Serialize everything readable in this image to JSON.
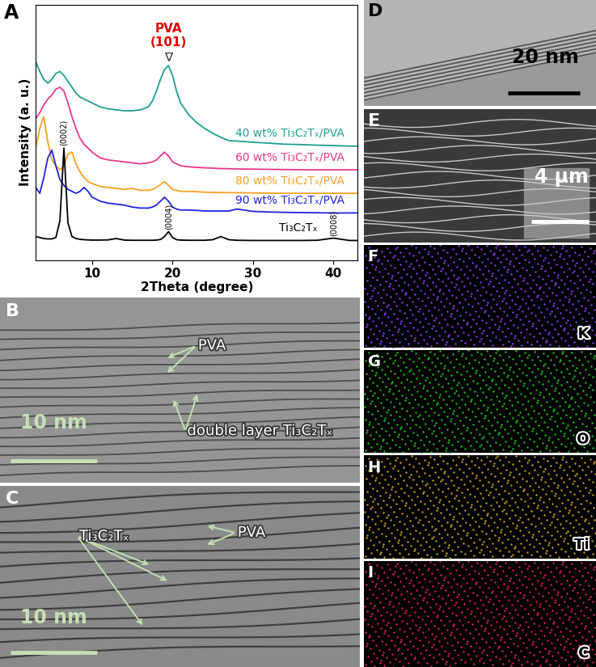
{
  "chart_data": {
    "type": "line",
    "title": "A",
    "x_label": "2Theta (degree)",
    "y_label": "Intensity (a. u.)",
    "x": [
      3,
      3.5,
      4,
      4.5,
      5,
      5.5,
      6,
      6.5,
      7,
      7.5,
      8,
      8.5,
      9,
      9.5,
      10,
      11,
      12,
      13,
      14,
      15,
      16,
      17,
      17.5,
      18,
      18.5,
      19,
      19.5,
      20,
      20.5,
      21,
      22,
      23,
      24,
      25,
      26,
      27,
      28,
      30,
      32,
      34,
      36,
      38,
      40,
      42,
      43
    ],
    "series": [
      {
        "name": "40 wt% Ti₃C₂Tₓ/PVA",
        "color": "#1f9e8f",
        "values": [
          101,
          96,
          92,
          90,
          92,
          95,
          96,
          94,
          91,
          88,
          85,
          83,
          82,
          81,
          80,
          78,
          77,
          76.5,
          76,
          76,
          76.5,
          78,
          81,
          86,
          92,
          97,
          99,
          94,
          86,
          80,
          74,
          70,
          67,
          64.5,
          62.5,
          60.8,
          60.6,
          60,
          59.5,
          59,
          58.8,
          58.5,
          58.3,
          58,
          58
        ]
      },
      {
        "name": "60 wt% Ti₃C₂Tₓ/PVA",
        "color": "#e8388a",
        "values": [
          72,
          75,
          79,
          82,
          84,
          87,
          88,
          86,
          80,
          73,
          67,
          62,
          59,
          57,
          55,
          52,
          51,
          50.5,
          50,
          49.5,
          49,
          49.5,
          50,
          51,
          53,
          55,
          53,
          50,
          49,
          48,
          47.5,
          47.2,
          47,
          46.8,
          46.6,
          46.5,
          46.4,
          46.3,
          46.2,
          46.1,
          46,
          46,
          46,
          46,
          46
        ]
      },
      {
        "name": "80 wt% Ti₃C₂Tₓ/PVA",
        "color": "#f5a023",
        "values": [
          57,
          67,
          73,
          60,
          51,
          48,
          46,
          48,
          54,
          55,
          49,
          45,
          42,
          40,
          39,
          37.5,
          37,
          36.5,
          36,
          36.5,
          35.5,
          35.5,
          36,
          37,
          38.5,
          40,
          38,
          36,
          35.5,
          35,
          35,
          34.8,
          34.6,
          34.5,
          34.4,
          34.3,
          34.3,
          34.2,
          34.1,
          34,
          34,
          34,
          34,
          34,
          34
        ]
      },
      {
        "name": "90 wt% Ti₃C₂Tₓ/PVA",
        "color": "#1f24d6",
        "values": [
          37,
          34,
          42,
          52,
          56,
          48,
          41,
          38,
          36,
          35,
          34,
          35,
          37,
          35,
          32,
          30,
          29,
          28.5,
          28,
          27,
          26.5,
          26.5,
          27,
          28,
          30,
          32,
          30,
          27,
          26,
          25.5,
          25.5,
          25.3,
          25,
          25,
          25,
          25,
          26,
          24.8,
          24.5,
          24.3,
          24.2,
          24.1,
          24,
          24,
          24
        ]
      },
      {
        "name": "Ti₃C₂Tₓ",
        "color": "#000000",
        "values": [
          12,
          11.5,
          11,
          10.8,
          10.8,
          11.5,
          20,
          57,
          19,
          12,
          11,
          10.6,
          10.4,
          10.3,
          10.2,
          10.2,
          10.3,
          11,
          10.2,
          10.1,
          10.1,
          10.1,
          10.1,
          10.2,
          10.5,
          12,
          14.5,
          11.5,
          10.4,
          10.2,
          10.1,
          10.1,
          10.1,
          10.4,
          12,
          10.4,
          10.1,
          10,
          10,
          10,
          10,
          10.1,
          11.2,
          10,
          10
        ]
      }
    ],
    "annotations": [
      {
        "text": "∇",
        "x": 19.5,
        "series": "40 wt% Ti₃C₂Tₓ/PVA",
        "color": "#333333"
      },
      {
        "text": "PVA\n(101)",
        "x": 19.5,
        "series": "40 wt% Ti₃C₂Tₓ/PVA",
        "color": "#e00000"
      },
      {
        "text": "(0002)",
        "x": 6.5,
        "series": "Ti₃C₂Tₓ",
        "color": "#000000"
      },
      {
        "text": "(0004)",
        "x": 19.5,
        "series": "Ti₃C₂Tₓ",
        "color": "#000000"
      },
      {
        "text": "(0008)",
        "x": 40,
        "series": "Ti₃C₂Tₓ",
        "color": "#000000"
      }
    ],
    "xlim": [
      3,
      43
    ],
    "xticks": [
      10,
      20,
      30,
      40
    ],
    "ylim": [
      0,
      130
    ],
    "yticks": [],
    "tick_labels": "x"
  },
  "images": [
    {
      "panel": "B",
      "color": "#959595",
      "labels": [
        "PVA",
        "double layer Ti₃C₂Tₓ"
      ],
      "scale_bar": "10 nm"
    },
    {
      "panel": "C",
      "color": "#8a8a8a",
      "labels": [
        "Ti₃C₂Tₓ",
        "PVA"
      ],
      "scale_bar": "10 nm"
    },
    {
      "panel": "D",
      "color": "#b4b4b4",
      "scale_bar": "20 nm"
    },
    {
      "panel": "E",
      "color": "#3a3a3a",
      "scale_bar": "4 μm"
    },
    {
      "panel": "F",
      "element": "K",
      "color": "#8a3ff0"
    },
    {
      "panel": "G",
      "element": "O",
      "color": "#22c022"
    },
    {
      "panel": "H",
      "element": "Ti",
      "color": "#c8a020"
    },
    {
      "panel": "I",
      "element": "C",
      "color": "#e0206a"
    }
  ]
}
